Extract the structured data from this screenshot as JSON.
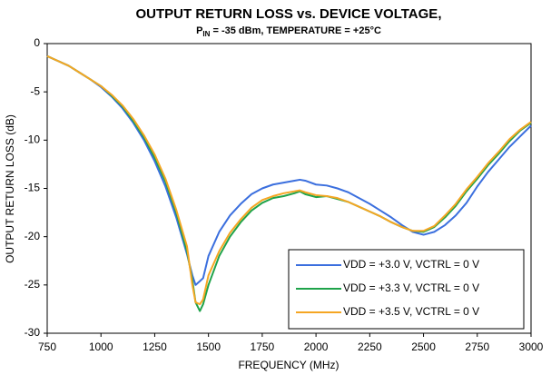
{
  "chart_data": {
    "type": "line",
    "title": "OUTPUT RETURN LOSS vs. DEVICE VOLTAGE,",
    "subtitle": [
      "P",
      "IN",
      " = -35 dBm, TEMPERATURE = +25°C"
    ],
    "x_label": "FREQUENCY (MHz)",
    "y_label": "OUTPUT  RETURN LOSS (dB)",
    "x": [
      750,
      800,
      850,
      900,
      950,
      1000,
      1050,
      1100,
      1150,
      1200,
      1250,
      1300,
      1350,
      1400,
      1425,
      1440,
      1460,
      1475,
      1500,
      1550,
      1600,
      1650,
      1700,
      1750,
      1800,
      1850,
      1900,
      1925,
      1950,
      2000,
      2050,
      2100,
      2150,
      2200,
      2250,
      2300,
      2350,
      2400,
      2450,
      2500,
      2550,
      2600,
      2650,
      2700,
      2750,
      2800,
      2850,
      2900,
      2950,
      3000
    ],
    "series": [
      {
        "name": "VDD = +3.0 V, VCTRL = 0 V",
        "color": "#3b6fde",
        "values": [
          -1.3,
          -1.8,
          -2.3,
          -3.0,
          -3.7,
          -4.5,
          -5.5,
          -6.7,
          -8.2,
          -10.0,
          -12.2,
          -14.8,
          -18.0,
          -21.8,
          -24.0,
          -25.0,
          -24.6,
          -24.3,
          -22.0,
          -19.5,
          -17.8,
          -16.6,
          -15.6,
          -15.0,
          -14.6,
          -14.4,
          -14.2,
          -14.1,
          -14.2,
          -14.6,
          -14.7,
          -15.0,
          -15.4,
          -16.0,
          -16.6,
          -17.3,
          -18.0,
          -18.8,
          -19.5,
          -19.8,
          -19.5,
          -18.8,
          -17.8,
          -16.5,
          -14.8,
          -13.3,
          -12.0,
          -10.7,
          -9.6,
          -8.5
        ]
      },
      {
        "name": "VDD = +3.3 V, VCTRL = 0 V",
        "color": "#1fa34a",
        "values": [
          -1.3,
          -1.8,
          -2.3,
          -3.0,
          -3.7,
          -4.4,
          -5.4,
          -6.5,
          -8.0,
          -9.7,
          -11.8,
          -14.3,
          -17.5,
          -21.5,
          -24.5,
          -26.8,
          -27.7,
          -27.0,
          -25.0,
          -22.0,
          -20.0,
          -18.5,
          -17.3,
          -16.5,
          -16.0,
          -15.8,
          -15.5,
          -15.3,
          -15.6,
          -15.9,
          -15.8,
          -16.1,
          -16.4,
          -16.9,
          -17.4,
          -17.9,
          -18.5,
          -19.0,
          -19.4,
          -19.5,
          -19.0,
          -18.0,
          -16.8,
          -15.3,
          -14.0,
          -12.6,
          -11.4,
          -10.1,
          -9.0,
          -8.2
        ]
      },
      {
        "name": "VDD = +3.5 V, VCTRL = 0 V",
        "color": "#f5a623",
        "values": [
          -1.3,
          -1.8,
          -2.3,
          -3.0,
          -3.7,
          -4.4,
          -5.3,
          -6.4,
          -7.8,
          -9.5,
          -11.5,
          -14.0,
          -17.2,
          -21.0,
          -25.0,
          -26.8,
          -27.0,
          -26.5,
          -24.0,
          -21.5,
          -19.6,
          -18.2,
          -17.0,
          -16.2,
          -15.8,
          -15.5,
          -15.3,
          -15.2,
          -15.4,
          -15.7,
          -15.8,
          -16.0,
          -16.4,
          -16.9,
          -17.4,
          -17.9,
          -18.5,
          -19.0,
          -19.4,
          -19.4,
          -18.9,
          -17.8,
          -16.6,
          -15.1,
          -13.8,
          -12.4,
          -11.2,
          -9.9,
          -8.9,
          -8.1
        ]
      }
    ],
    "xlim": [
      750,
      3000
    ],
    "xticks": [
      750,
      1000,
      1250,
      1500,
      1750,
      2000,
      2250,
      2500,
      2750,
      3000
    ],
    "ylim": [
      -30,
      0
    ],
    "yticks": [
      0,
      -5,
      -10,
      -15,
      -20,
      -25,
      -30
    ],
    "grid": false,
    "legend": "lower right"
  }
}
